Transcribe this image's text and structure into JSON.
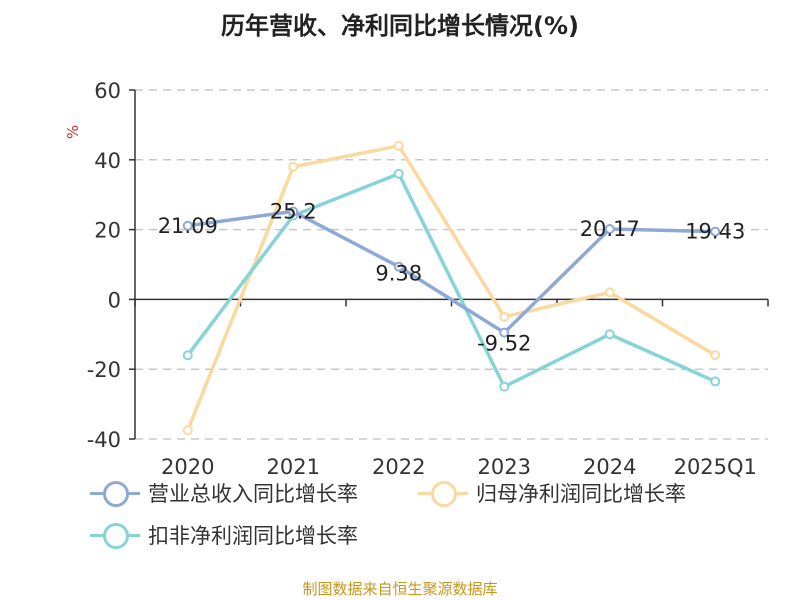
{
  "title": "历年营收、净利同比增长情况(%)",
  "watermark": "制图数据来自恒生聚源数据库",
  "chart_data": {
    "type": "line",
    "categories": [
      "2020",
      "2021",
      "2022",
      "2023",
      "2024",
      "2025Q1"
    ],
    "ylabel": "%",
    "ylim": [
      -40,
      60
    ],
    "yticks": [
      -40,
      -20,
      0,
      20,
      40,
      60
    ],
    "grid": true,
    "legend_position": "bottom",
    "series": [
      {
        "name": "营业总收入同比增长率",
        "color": "#8fa9d6",
        "values": [
          21.09,
          25.2,
          9.38,
          -9.52,
          20.17,
          19.43
        ],
        "labels": [
          "21.09",
          "25.2",
          "9.38",
          "-9.52",
          "20.17",
          "19.43"
        ]
      },
      {
        "name": "归母净利润同比增长率",
        "color": "#fad9a0",
        "values": [
          -37.5,
          38,
          44,
          -5,
          2,
          -16
        ]
      },
      {
        "name": "扣非净利润同比增长率",
        "color": "#86d4d8",
        "values": [
          -16,
          24,
          36,
          -25,
          -10,
          -23.5
        ]
      }
    ]
  }
}
